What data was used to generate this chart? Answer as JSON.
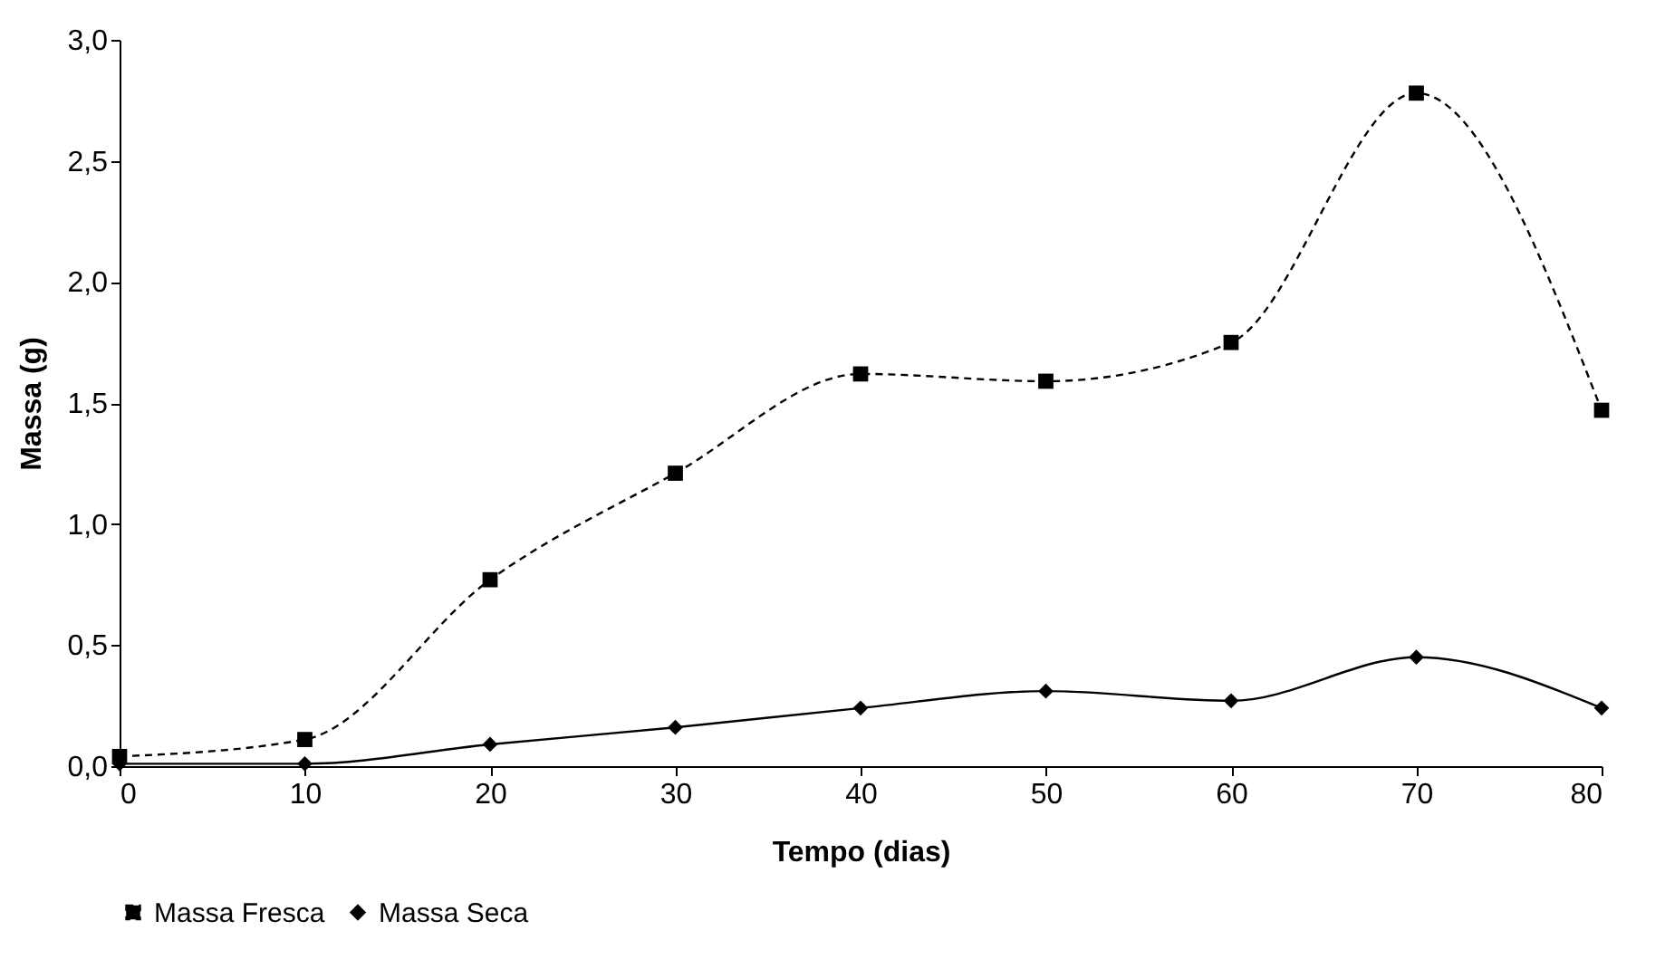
{
  "chart_data": {
    "type": "line",
    "xlabel": "Tempo (dias)",
    "ylabel": "Massa (g)",
    "x": [
      0,
      10,
      20,
      30,
      40,
      50,
      60,
      70,
      80
    ],
    "series": [
      {
        "name": "Massa Fresca",
        "color": "#000000",
        "marker": "square",
        "line_style": "dashed",
        "values": [
          0.04,
          0.11,
          0.77,
          1.21,
          1.62,
          1.59,
          1.75,
          2.78,
          1.47
        ]
      },
      {
        "name": "Massa Seca",
        "color": "#000000",
        "marker": "diamond",
        "line_style": "solid",
        "values": [
          0.01,
          0.01,
          0.09,
          0.16,
          0.24,
          0.31,
          0.27,
          0.45,
          0.24
        ]
      }
    ],
    "xlim": [
      0,
      80
    ],
    "xticks": [
      0,
      10,
      20,
      30,
      40,
      50,
      60,
      70,
      80
    ],
    "ylim": [
      0,
      3
    ],
    "yticks": [
      {
        "value": 0,
        "label": "0,0"
      },
      {
        "value": 0.5,
        "label": "0,5"
      },
      {
        "value": 1,
        "label": "1,0"
      },
      {
        "value": 1.5,
        "label": "1,5"
      },
      {
        "value": 2,
        "label": "2,0"
      },
      {
        "value": 2.5,
        "label": "2,5"
      },
      {
        "value": 3,
        "label": "3,0"
      }
    ],
    "grid": false,
    "legend": "bottom"
  }
}
